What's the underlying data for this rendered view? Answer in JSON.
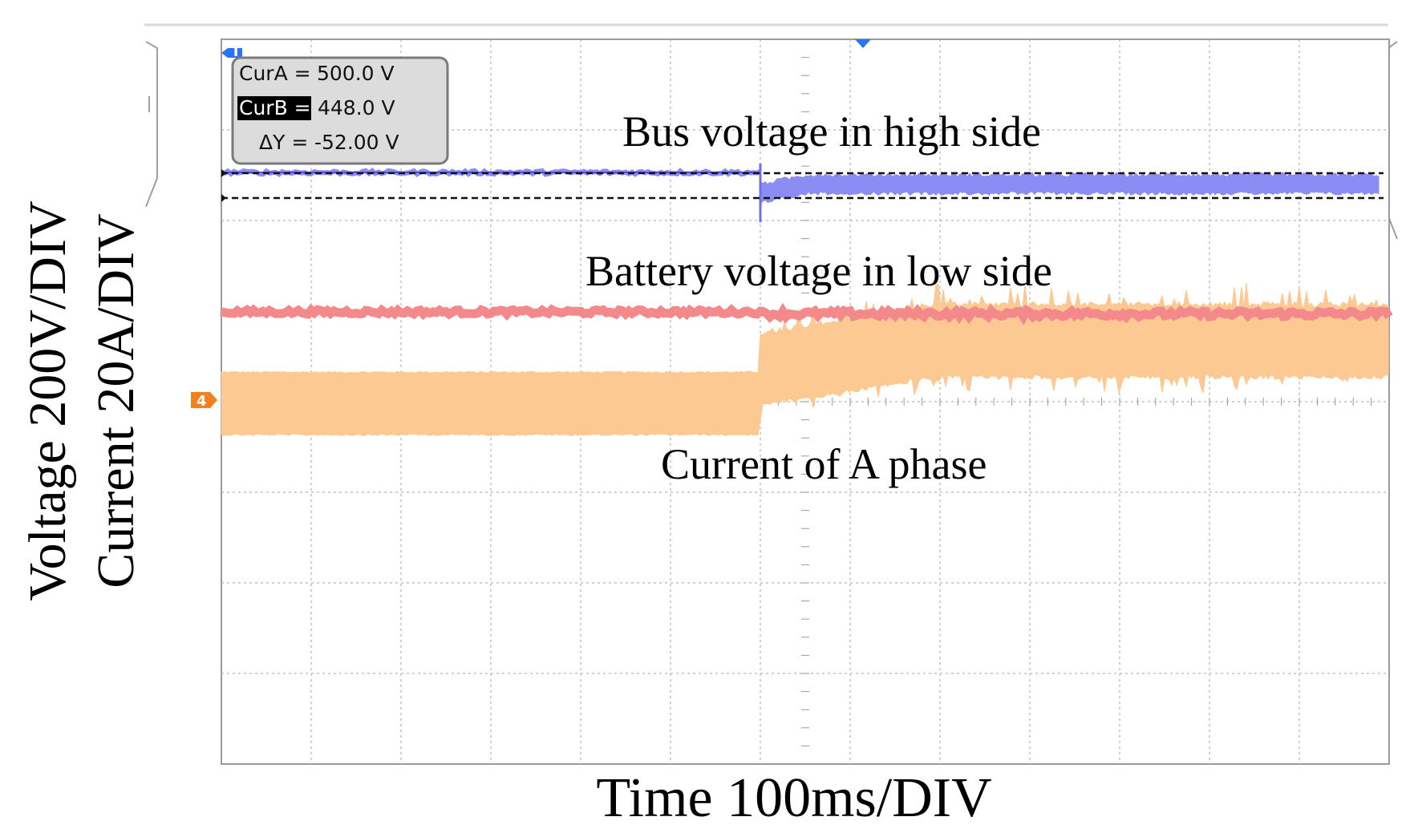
{
  "chart_data": {
    "type": "line",
    "xlabel": "Time 100ms/DIV",
    "ylabel_voltage": "Voltage 200V/DIV",
    "ylabel_current": "Current 20A/DIV",
    "x_divisions": 13,
    "y_divisions": 8,
    "grid": true,
    "xlim_ms": [
      0,
      1300
    ],
    "event_time_ms": 600,
    "annotations": {
      "bus": "Bus voltage in high side",
      "battery": "Battery voltage in low side",
      "current": "Current of A phase"
    },
    "cursor_box": {
      "cur_a_label": "CurA =",
      "cur_a_value": "500.0 V",
      "cur_b_label": "CurB =",
      "cur_b_value": "448.0 V",
      "delta_label": "ΔY =",
      "delta_value": "-52.00 V"
    },
    "cursors_volts": {
      "cur_a": 500.0,
      "cur_b": 448.0
    },
    "channel_marker": "4",
    "series": [
      {
        "name": "Bus voltage in high side",
        "color": "#8c8cf5",
        "level_div_before": 6.53,
        "level_div_after": 6.4,
        "ripple_div_before": 0.04,
        "ripple_div_after": 0.16
      },
      {
        "name": "Battery voltage in low side",
        "color": "#f4898c",
        "level_div_before": 4.99,
        "level_div_after": 4.97,
        "ripple_div_before": 0.05,
        "ripple_div_after": 0.07
      },
      {
        "name": "Current of A phase",
        "color": "#fdc993",
        "center_div_before": 3.98,
        "center_div_after": 4.67,
        "ripple_div_before": 0.67,
        "ripple_div_after": 0.75
      }
    ]
  }
}
